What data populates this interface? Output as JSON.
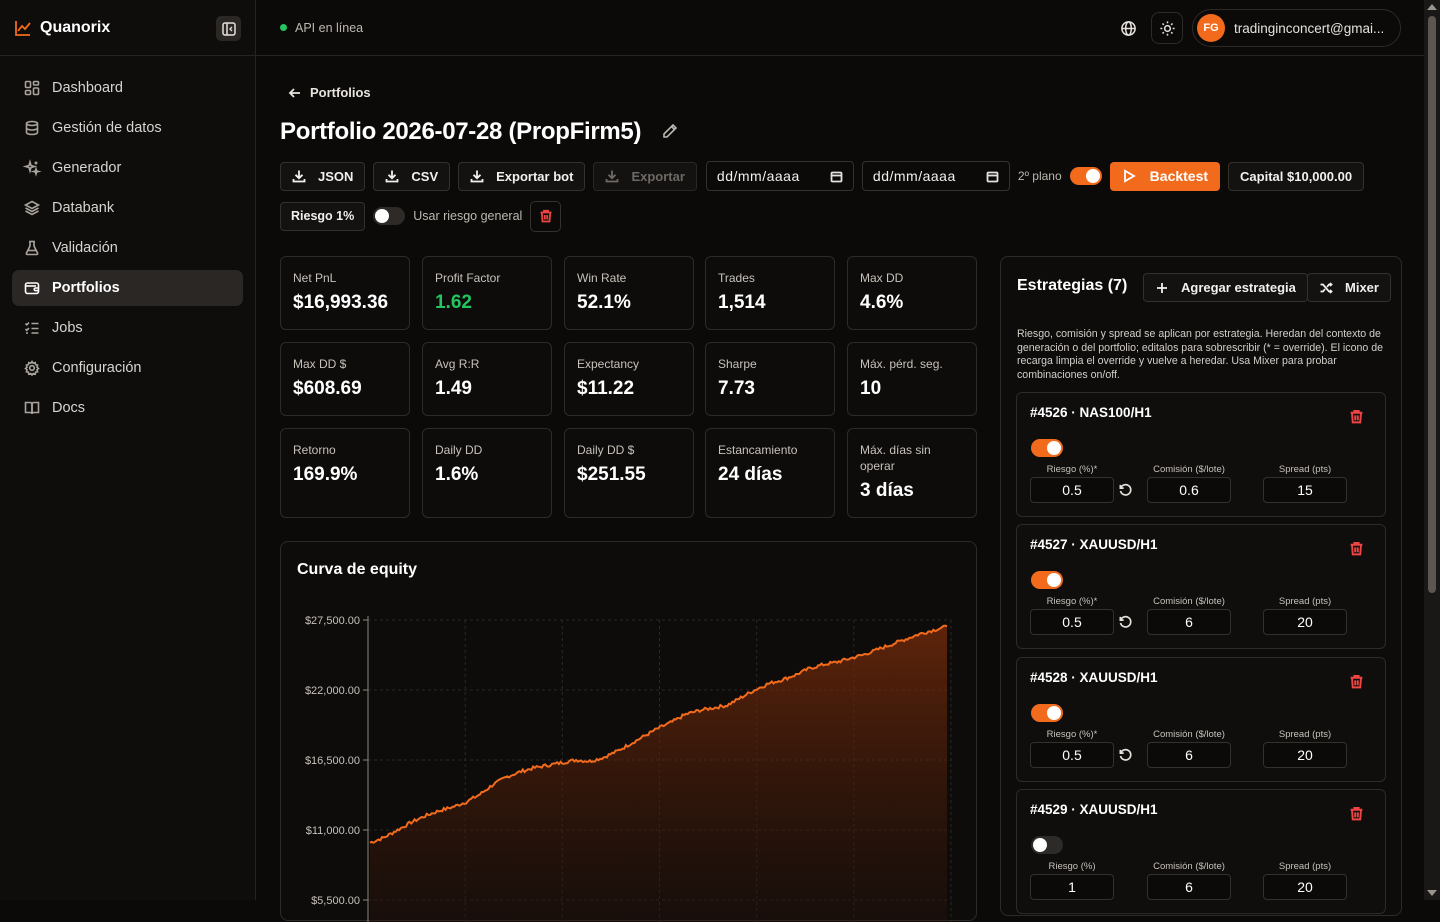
{
  "brand": {
    "name": "Quanorix"
  },
  "sidebar": {
    "items": [
      {
        "label": "Dashboard",
        "icon": "grid-icon"
      },
      {
        "label": "Gestión de datos",
        "icon": "database-icon"
      },
      {
        "label": "Generador",
        "icon": "sparkles-icon"
      },
      {
        "label": "Databank",
        "icon": "layers-icon"
      },
      {
        "label": "Validación",
        "icon": "flask-icon"
      },
      {
        "label": "Portfolios",
        "icon": "wallet-icon",
        "active": true
      },
      {
        "label": "Jobs",
        "icon": "list-checks-icon"
      },
      {
        "label": "Configuración",
        "icon": "gear-icon"
      },
      {
        "label": "Docs",
        "icon": "book-icon"
      }
    ]
  },
  "topbar": {
    "api_status": "API en línea",
    "user_initials": "FG",
    "user_email": "tradinginconcert@gmai..."
  },
  "page": {
    "back_label": "Portfolios",
    "title": "Portfolio 2026-07-28 (PropFirm5)"
  },
  "toolbar": {
    "json_label": "JSON",
    "csv_label": "CSV",
    "export_bot_label": "Exportar bot",
    "export_label": "Exportar",
    "date_from_placeholder": "dd/mm/aaaa",
    "date_to_placeholder": "dd/mm/aaaa",
    "background_label": "2º plano",
    "background_on": true,
    "backtest_label": "Backtest",
    "capital_label": "Capital $10,000.00"
  },
  "risk": {
    "chip_label": "Riesgo 1%",
    "use_general_label": "Usar riesgo general",
    "use_general_on": false
  },
  "metrics": [
    {
      "label": "Net PnL",
      "value": "$16,993.36"
    },
    {
      "label": "Profit Factor",
      "value": "1.62",
      "highlight": "green"
    },
    {
      "label": "Win Rate",
      "value": "52.1%"
    },
    {
      "label": "Trades",
      "value": "1,514"
    },
    {
      "label": "Max DD",
      "value": "4.6%"
    },
    {
      "label": "Max DD $",
      "value": "$608.69"
    },
    {
      "label": "Avg R:R",
      "value": "1.49"
    },
    {
      "label": "Expectancy",
      "value": "$11.22"
    },
    {
      "label": "Sharpe",
      "value": "7.73"
    },
    {
      "label": "Máx. pérd. seg.",
      "value": "10"
    },
    {
      "label": "Retorno",
      "value": "169.9%"
    },
    {
      "label": "Daily DD",
      "value": "1.6%"
    },
    {
      "label": "Daily DD $",
      "value": "$251.55"
    },
    {
      "label": "Estancamiento",
      "value": "24 días"
    },
    {
      "label": "Máx. días sin operar",
      "value": "3 días"
    }
  ],
  "equity": {
    "title": "Curva de equity"
  },
  "chart_data": {
    "type": "area",
    "title": "Curva de equity",
    "y_ticks": [
      "$27,500.00",
      "$22,000.00",
      "$16,500.00",
      "$11,000.00",
      "$5,500.00"
    ],
    "ylim": [
      5500,
      27500
    ],
    "grid": true,
    "series": [
      {
        "values": [
          10000,
          10400,
          11000,
          11600,
          12100,
          12500,
          12800,
          13200,
          13800,
          14600,
          15200,
          15600,
          15900,
          16100,
          16300,
          16500,
          16400,
          16700,
          17200,
          17800,
          18400,
          19000,
          19500,
          20100,
          20400,
          20600,
          20800,
          21400,
          22000,
          22500,
          22800,
          23200,
          23700,
          24000,
          24200,
          24500,
          24800,
          25200,
          25600,
          26000,
          26400,
          26700,
          27000
        ]
      }
    ]
  },
  "strategies": {
    "title": "Estrategias (7)",
    "add_label": "Agregar estrategia",
    "mixer_label": "Mixer",
    "description": "Riesgo, comisión y spread se aplican por estrategia. Heredan del contexto de generación o del portfolio; editalos para sobrescribir (* = override). El icono de recarga limpia el override y vuelve a heredar. Usa Mixer para probar combinaciones on/off.",
    "risk_label_override": "Riesgo (%)*",
    "risk_label": "Riesgo (%)",
    "commission_label": "Comisión ($/lote)",
    "spread_label": "Spread (pts)",
    "items": [
      {
        "name": "#4526 · NAS100/H1",
        "enabled": true,
        "risk": "0.5",
        "commission": "0.6",
        "spread": "15",
        "override": true
      },
      {
        "name": "#4527 · XAUUSD/H1",
        "enabled": true,
        "risk": "0.5",
        "commission": "6",
        "spread": "20",
        "override": true
      },
      {
        "name": "#4528 · XAUUSD/H1",
        "enabled": true,
        "risk": "0.5",
        "commission": "6",
        "spread": "20",
        "override": true
      },
      {
        "name": "#4529 · XAUUSD/H1",
        "enabled": false,
        "risk": "1",
        "commission": "6",
        "spread": "20",
        "override": false
      }
    ]
  },
  "colors": {
    "accent": "#f26b1d",
    "positive": "#22c55e",
    "danger": "#ef4444",
    "background": "#0b0a09"
  }
}
